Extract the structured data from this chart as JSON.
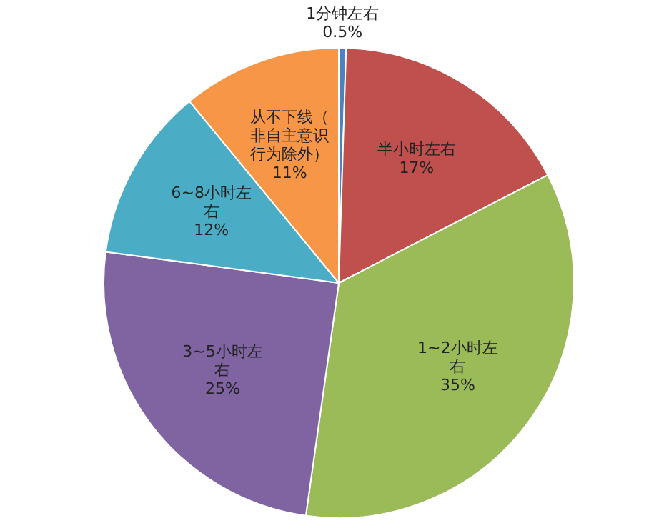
{
  "chart_data": {
    "type": "pie",
    "categories": [
      "1分钟左右",
      "半小时左右",
      "1~2小时左右",
      "3~5小时左右",
      "6~8小时左右",
      "从不下线（非自主意识行为除外）"
    ],
    "values": [
      0.5,
      17,
      35,
      25,
      12,
      11
    ],
    "value_labels": [
      "0.5%",
      "17%",
      "35%",
      "25%",
      "12%",
      "11%"
    ],
    "colors": [
      "#4f81bd",
      "#c0504d",
      "#9bbb59",
      "#8064a2",
      "#4bacc6",
      "#f79646"
    ],
    "legend": false
  }
}
